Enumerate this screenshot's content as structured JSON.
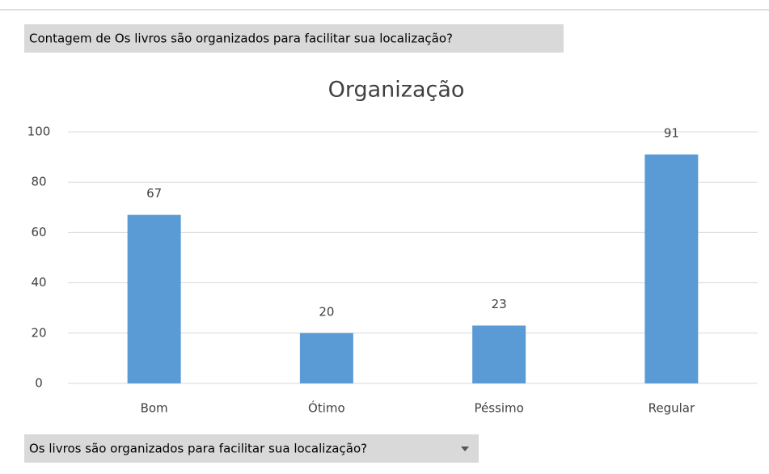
{
  "chart_data": {
    "type": "bar",
    "pivot_header": "Contagem de Os livros são organizados para facilitar sua localização?",
    "title": "Organização",
    "categories": [
      "Bom",
      "Ótimo",
      "Péssimo",
      "Regular"
    ],
    "values": [
      67,
      20,
      23,
      91
    ],
    "color": "#5b9bd5",
    "ylim": [
      0,
      100
    ],
    "yticks": [
      0,
      20,
      40,
      60,
      80,
      100
    ],
    "grid": true,
    "axis_field_button": "Os livros são organizados para facilitar sua localização?"
  }
}
